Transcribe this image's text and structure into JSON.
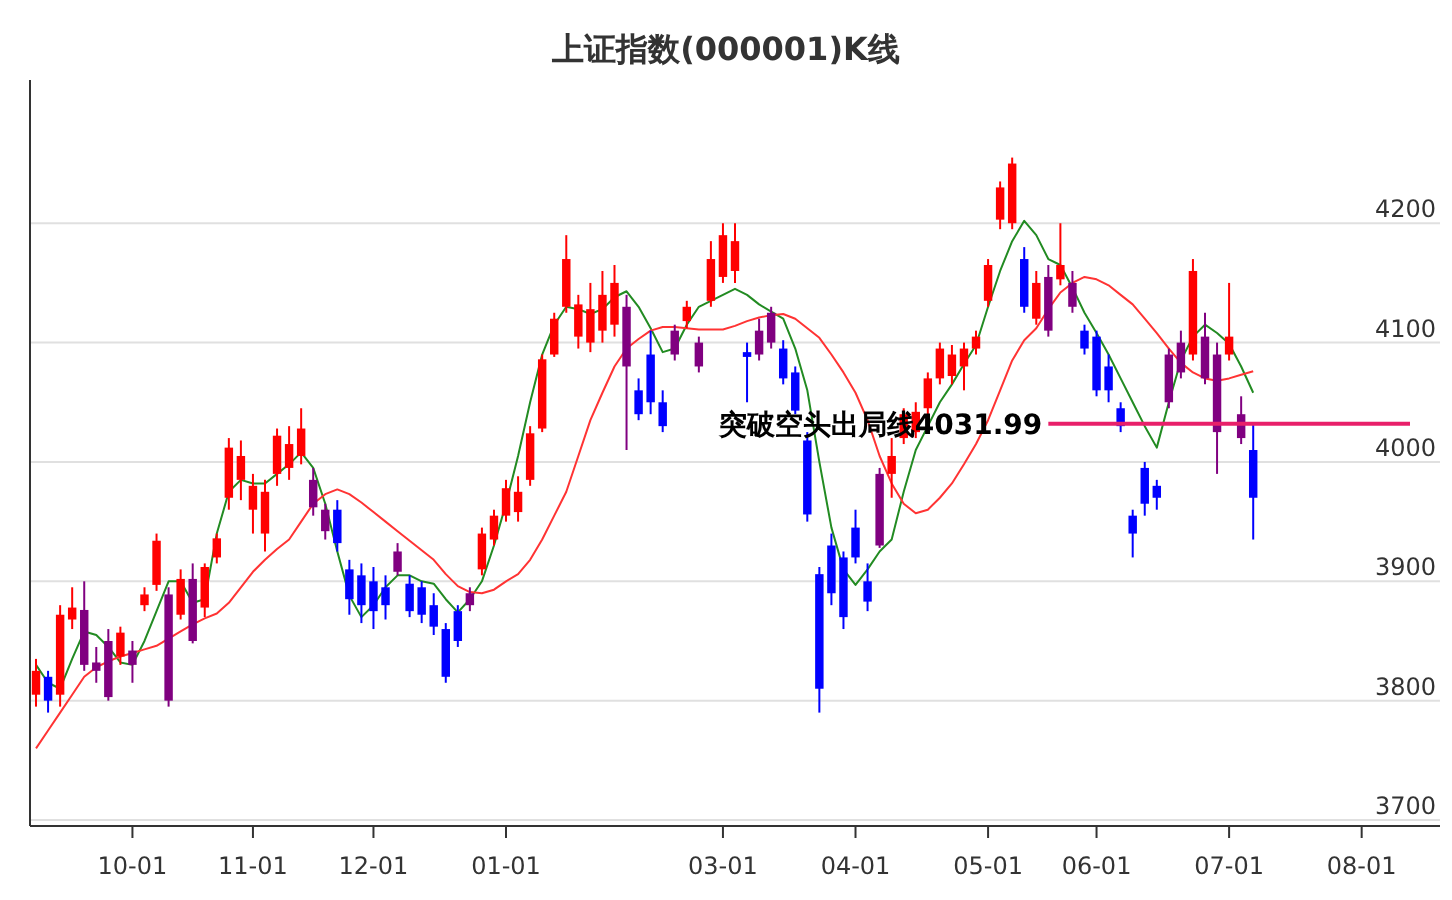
{
  "chart_data": {
    "type": "candlestick",
    "title": "上证指数(000001)K线",
    "categories": [
      null,
      null,
      null,
      null,
      null,
      null,
      null,
      null,
      "10-01",
      null,
      null,
      null,
      null,
      null,
      null,
      null,
      null,
      null,
      "11-01",
      null,
      null,
      null,
      null,
      null,
      null,
      null,
      null,
      null,
      "12-01",
      null,
      null,
      null,
      null,
      null,
      null,
      null,
      null,
      null,
      null,
      "01-01",
      null,
      null,
      null,
      null,
      null,
      null,
      null,
      null,
      null,
      null,
      null,
      null,
      null,
      null,
      null,
      null,
      null,
      "03-01",
      null,
      null,
      null,
      null,
      null,
      null,
      null,
      null,
      null,
      null,
      "04-01",
      null,
      null,
      null,
      null,
      null,
      null,
      null,
      null,
      null,
      null,
      "05-01",
      null,
      null,
      null,
      null,
      null,
      null,
      null,
      null,
      "06-01",
      null,
      null,
      null,
      null,
      null,
      null,
      null,
      null,
      null,
      null,
      "07-01",
      null,
      null,
      null,
      null,
      null,
      null,
      null,
      null,
      null,
      null,
      "08-01",
      null,
      null,
      null,
      null,
      null,
      null
    ],
    "ohlc": [
      [
        3805,
        3835,
        3795,
        3825
      ],
      [
        3820,
        3825,
        3790,
        3800
      ],
      [
        3805,
        3880,
        3795,
        3872
      ],
      [
        3868,
        3895,
        3860,
        3878
      ],
      [
        3876,
        3900,
        3825,
        3830
      ],
      [
        3832,
        3845,
        3815,
        3825
      ],
      [
        3850,
        3860,
        3800,
        3803
      ],
      [
        3837,
        3862,
        3830,
        3857
      ],
      [
        3830,
        3850,
        3815,
        3842
      ],
      [
        3880,
        3895,
        3875,
        3889
      ],
      [
        3897,
        3940,
        3892,
        3934
      ],
      [
        3889,
        3895,
        3795,
        3800
      ],
      [
        3872,
        3910,
        3868,
        3902
      ],
      [
        3902,
        3915,
        3848,
        3850
      ],
      [
        3878,
        3915,
        3870,
        3912
      ],
      [
        3920,
        3940,
        3915,
        3936
      ],
      [
        3970,
        4020,
        3960,
        4012
      ],
      [
        3985,
        4018,
        3968,
        4005
      ],
      [
        3960,
        3990,
        3940,
        3980
      ],
      [
        3940,
        3985,
        3925,
        3975
      ],
      [
        3990,
        4028,
        3980,
        4022
      ],
      [
        3995,
        4030,
        3985,
        4015
      ],
      [
        4005,
        4045,
        3998,
        4028
      ],
      [
        3985,
        3995,
        3955,
        3962
      ],
      [
        3960,
        3965,
        3935,
        3942
      ],
      [
        3960,
        3968,
        3925,
        3932
      ],
      [
        3910,
        3918,
        3872,
        3885
      ],
      [
        3905,
        3915,
        3865,
        3880
      ],
      [
        3900,
        3912,
        3860,
        3875
      ],
      [
        3895,
        3905,
        3868,
        3880
      ],
      [
        3925,
        3932,
        3905,
        3908
      ],
      [
        3898,
        3905,
        3870,
        3875
      ],
      [
        3895,
        3900,
        3865,
        3872
      ],
      [
        3880,
        3890,
        3855,
        3862
      ],
      [
        3860,
        3865,
        3815,
        3820
      ],
      [
        3875,
        3880,
        3845,
        3850
      ],
      [
        3880,
        3895,
        3875,
        3890
      ],
      [
        3910,
        3945,
        3905,
        3940
      ],
      [
        3935,
        3960,
        3930,
        3955
      ],
      [
        3955,
        3985,
        3950,
        3978
      ],
      [
        3958,
        3988,
        3950,
        3975
      ],
      [
        3985,
        4030,
        3980,
        4024
      ],
      [
        4028,
        4090,
        4025,
        4086
      ],
      [
        4090,
        4125,
        4088,
        4120
      ],
      [
        4130,
        4190,
        4125,
        4170
      ],
      [
        4105,
        4140,
        4095,
        4132
      ],
      [
        4100,
        4150,
        4092,
        4128
      ],
      [
        4110,
        4160,
        4100,
        4140
      ],
      [
        4115,
        4165,
        4105,
        4150
      ],
      [
        4130,
        4140,
        4010,
        4080
      ],
      [
        4060,
        4070,
        4035,
        4040
      ],
      [
        4090,
        4110,
        4040,
        4050
      ],
      [
        4050,
        4060,
        4025,
        4030
      ],
      [
        4110,
        4115,
        4085,
        4090
      ],
      [
        4118,
        4135,
        4112,
        4130
      ],
      [
        4100,
        4105,
        4075,
        4080
      ],
      [
        4135,
        4185,
        4130,
        4170
      ],
      [
        4155,
        4200,
        4150,
        4190
      ],
      [
        4160,
        4200,
        4150,
        4185
      ],
      [
        4092,
        4100,
        4050,
        4088
      ],
      [
        4110,
        4120,
        4085,
        4090
      ],
      [
        4100,
        4130,
        4095,
        4125
      ],
      [
        4095,
        4102,
        4065,
        4070
      ],
      [
        4075,
        4080,
        4040,
        4043
      ],
      [
        4018,
        4025,
        3950,
        3956
      ],
      [
        3906,
        3912,
        3790,
        3810
      ],
      [
        3930,
        3940,
        3880,
        3890
      ],
      [
        3920,
        3925,
        3860,
        3870
      ],
      [
        3945,
        3960,
        3915,
        3920
      ],
      [
        3900,
        3915,
        3875,
        3883
      ],
      [
        3930,
        3995,
        3928,
        3990
      ],
      [
        3990,
        4020,
        3970,
        4005
      ],
      [
        4020,
        4045,
        4015,
        4040
      ],
      [
        4025,
        4050,
        4020,
        4042
      ],
      [
        4045,
        4075,
        4040,
        4070
      ],
      [
        4070,
        4100,
        4065,
        4095
      ],
      [
        4072,
        4098,
        4065,
        4090
      ],
      [
        4080,
        4100,
        4060,
        4095
      ],
      [
        4095,
        4110,
        4090,
        4105
      ],
      [
        4135,
        4170,
        4130,
        4165
      ],
      [
        4203,
        4235,
        4195,
        4230
      ],
      [
        4200,
        4255,
        4195,
        4250
      ],
      [
        4170,
        4180,
        4125,
        4130
      ],
      [
        4120,
        4160,
        4115,
        4150
      ],
      [
        4155,
        4165,
        4105,
        4110
      ],
      [
        4153,
        4200,
        4148,
        4165
      ],
      [
        4150,
        4160,
        4125,
        4130
      ],
      [
        4110,
        4115,
        4090,
        4095
      ],
      [
        4105,
        4110,
        4055,
        4060
      ],
      [
        4080,
        4090,
        4050,
        4060
      ],
      [
        4045,
        4050,
        4025,
        4030
      ],
      [
        3955,
        3960,
        3920,
        3940
      ],
      [
        3995,
        4000,
        3955,
        3965
      ],
      [
        3980,
        3985,
        3960,
        3970
      ],
      [
        4090,
        4095,
        4045,
        4050
      ],
      [
        4100,
        4110,
        4070,
        4075
      ],
      [
        4090,
        4170,
        4085,
        4160
      ],
      [
        4105,
        4125,
        4065,
        4070
      ],
      [
        4090,
        4100,
        3990,
        4025
      ],
      [
        4090,
        4150,
        4085,
        4105
      ],
      [
        4040,
        4055,
        4015,
        4020
      ],
      [
        4010,
        4032,
        3935,
        3970
      ],
      null,
      null,
      null,
      null,
      null,
      null,
      null,
      null,
      null,
      null,
      null,
      null,
      null,
      null,
      null
    ],
    "colors": [
      "#ff0000",
      "#0000ff",
      "#ff0000",
      "#ff0000",
      "#800080",
      "#800080",
      "#800080",
      "#ff0000",
      "#800080",
      "#ff0000",
      "#ff0000",
      "#800080",
      "#ff0000",
      "#800080",
      "#ff0000",
      "#ff0000",
      "#ff0000",
      "#ff0000",
      "#ff0000",
      "#ff0000",
      "#ff0000",
      "#ff0000",
      "#ff0000",
      "#800080",
      "#800080",
      "#0000ff",
      "#0000ff",
      "#0000ff",
      "#0000ff",
      "#0000ff",
      "#800080",
      "#0000ff",
      "#0000ff",
      "#0000ff",
      "#0000ff",
      "#0000ff",
      "#800080",
      "#ff0000",
      "#ff0000",
      "#ff0000",
      "#ff0000",
      "#ff0000",
      "#ff0000",
      "#ff0000",
      "#ff0000",
      "#ff0000",
      "#ff0000",
      "#ff0000",
      "#ff0000",
      "#800080",
      "#0000ff",
      "#0000ff",
      "#0000ff",
      "#800080",
      "#ff0000",
      "#800080",
      "#ff0000",
      "#ff0000",
      "#ff0000",
      "#0000ff",
      "#800080",
      "#800080",
      "#0000ff",
      "#0000ff",
      "#0000ff",
      "#0000ff",
      "#0000ff",
      "#0000ff",
      "#0000ff",
      "#0000ff",
      "#800080",
      "#ff0000",
      "#ff0000",
      "#ff0000",
      "#ff0000",
      "#ff0000",
      "#ff0000",
      "#ff0000",
      "#ff0000",
      "#ff0000",
      "#ff0000",
      "#ff0000",
      "#0000ff",
      "#ff0000",
      "#800080",
      "#ff0000",
      "#800080",
      "#0000ff",
      "#0000ff",
      "#0000ff",
      "#0000ff",
      "#0000ff",
      "#0000ff",
      "#0000ff",
      "#800080",
      "#800080",
      "#ff0000",
      "#800080",
      "#800080",
      "#ff0000",
      "#800080",
      "#0000ff",
      null,
      null,
      null,
      null,
      null,
      null,
      null,
      null,
      null,
      null,
      null,
      null,
      null,
      null,
      null
    ],
    "series": [
      {
        "type": "line",
        "color": "#228b22",
        "values": [
          3830,
          3815,
          3810,
          3835,
          3858,
          3855,
          3845,
          3832,
          3830,
          3850,
          3875,
          3900,
          3900,
          3882,
          3885,
          3940,
          3975,
          3985,
          3982,
          3982,
          3990,
          3998,
          4008,
          3995,
          3965,
          3925,
          3888,
          3870,
          3880,
          3895,
          3905,
          3905,
          3900,
          3898,
          3885,
          3874,
          3885,
          3900,
          3930,
          3965,
          4005,
          4050,
          4090,
          4115,
          4130,
          4128,
          4124,
          4128,
          4138,
          4143,
          4130,
          4112,
          4092,
          4095,
          4115,
          4130,
          4135,
          4140,
          4145,
          4140,
          4132,
          4126,
          4120,
          4095,
          4060,
          4000,
          3945,
          3910,
          3897,
          3910,
          3925,
          3935,
          3975,
          4010,
          4030,
          4050,
          4065,
          4082,
          4098,
          4130,
          4160,
          4185,
          4202,
          4190,
          4170,
          4165,
          4146,
          4125,
          4108,
          4090,
          4070,
          4050,
          4030,
          4012,
          4050,
          4085,
          4105,
          4115,
          4108,
          4099,
          4080,
          4058,
          null,
          null,
          null,
          null,
          null,
          null,
          null,
          null,
          null,
          null,
          null,
          null,
          null,
          null,
          null
        ]
      },
      {
        "type": "line",
        "color": "#ff3333",
        "values": [
          3760,
          3775,
          3790,
          3805,
          3820,
          3828,
          3833,
          3837,
          3840,
          3843,
          3846,
          3852,
          3858,
          3864,
          3869,
          3873,
          3882,
          3895,
          3908,
          3918,
          3927,
          3935,
          3950,
          3965,
          3973,
          3977,
          3973,
          3966,
          3958,
          3950,
          3942,
          3934,
          3926,
          3918,
          3906,
          3896,
          3891,
          3890,
          3893,
          3900,
          3906,
          3918,
          3935,
          3955,
          3975,
          4005,
          4035,
          4058,
          4080,
          4095,
          4103,
          4110,
          4113,
          4113,
          4112,
          4111,
          4111,
          4111,
          4114,
          4118,
          4121,
          4123,
          4124,
          4120,
          4112,
          4104,
          4090,
          4075,
          4058,
          4035,
          4005,
          3982,
          3965,
          3957,
          3960,
          3970,
          3982,
          3998,
          4015,
          4035,
          4060,
          4085,
          4102,
          4112,
          4128,
          4142,
          4150,
          4155,
          4153,
          4148,
          4140,
          4132,
          4120,
          4108,
          4095,
          4083,
          4075,
          4070,
          4068,
          4070,
          4073,
          4076,
          null,
          null,
          null,
          null,
          null,
          null,
          null,
          null,
          null,
          null,
          null,
          null,
          null,
          null,
          null
        ]
      }
    ],
    "ylim": [
      3695,
      4320
    ],
    "yticks": [
      3700,
      3800,
      3900,
      4000,
      4100,
      4200
    ],
    "grid": "y",
    "ref_lines": [
      {
        "axis": "y",
        "value": 4031.99,
        "label": "突破空头出局线4031.99",
        "color": "#e8206a"
      }
    ]
  }
}
